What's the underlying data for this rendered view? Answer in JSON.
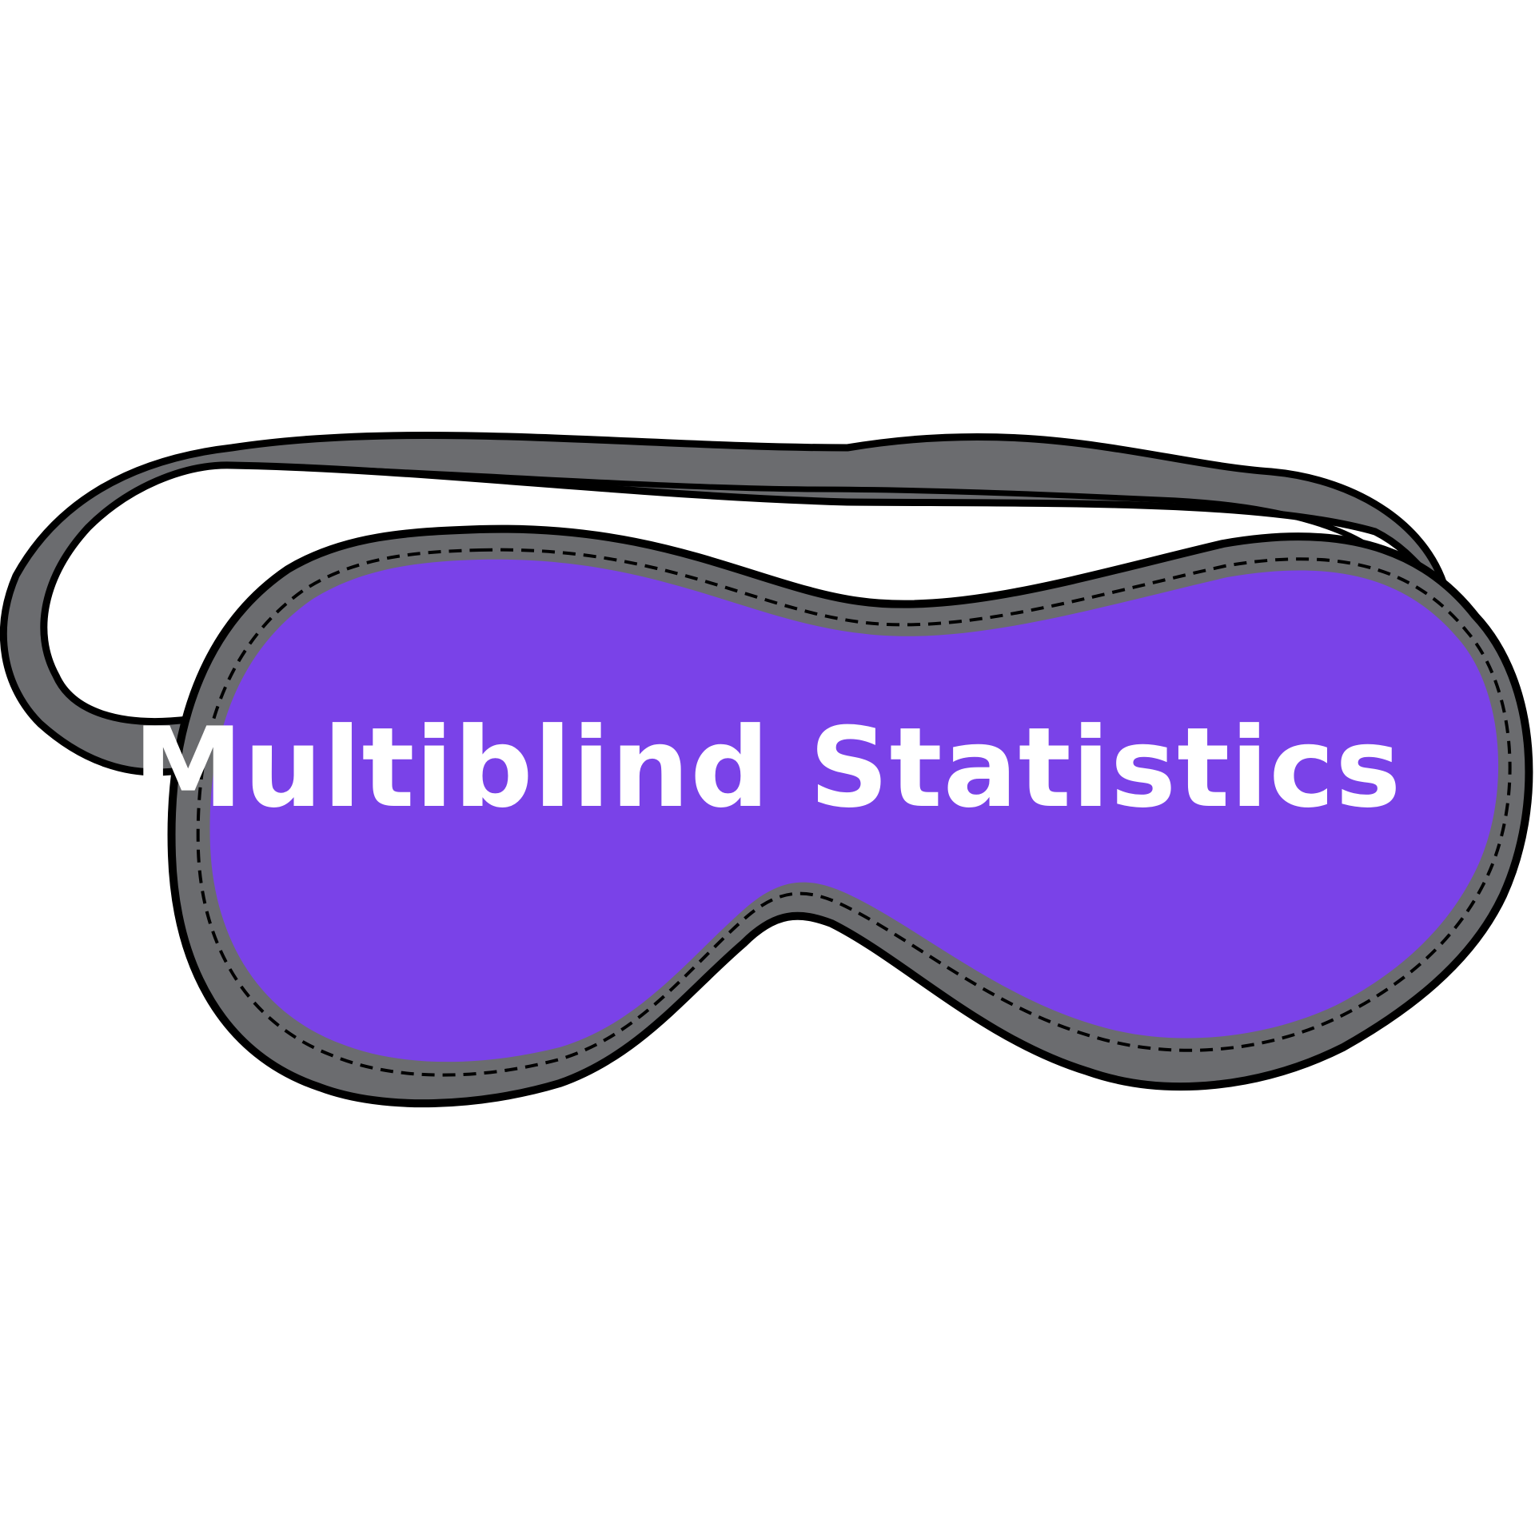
{
  "logo": {
    "text": "Multiblind Statistics",
    "icon": "sleep-mask-icon",
    "colors": {
      "mask_fill": "#7A42E8",
      "rim": "#6B6C6F",
      "outline": "#000000",
      "text": "#FFFFFF",
      "background": "#FFFFFF"
    }
  }
}
